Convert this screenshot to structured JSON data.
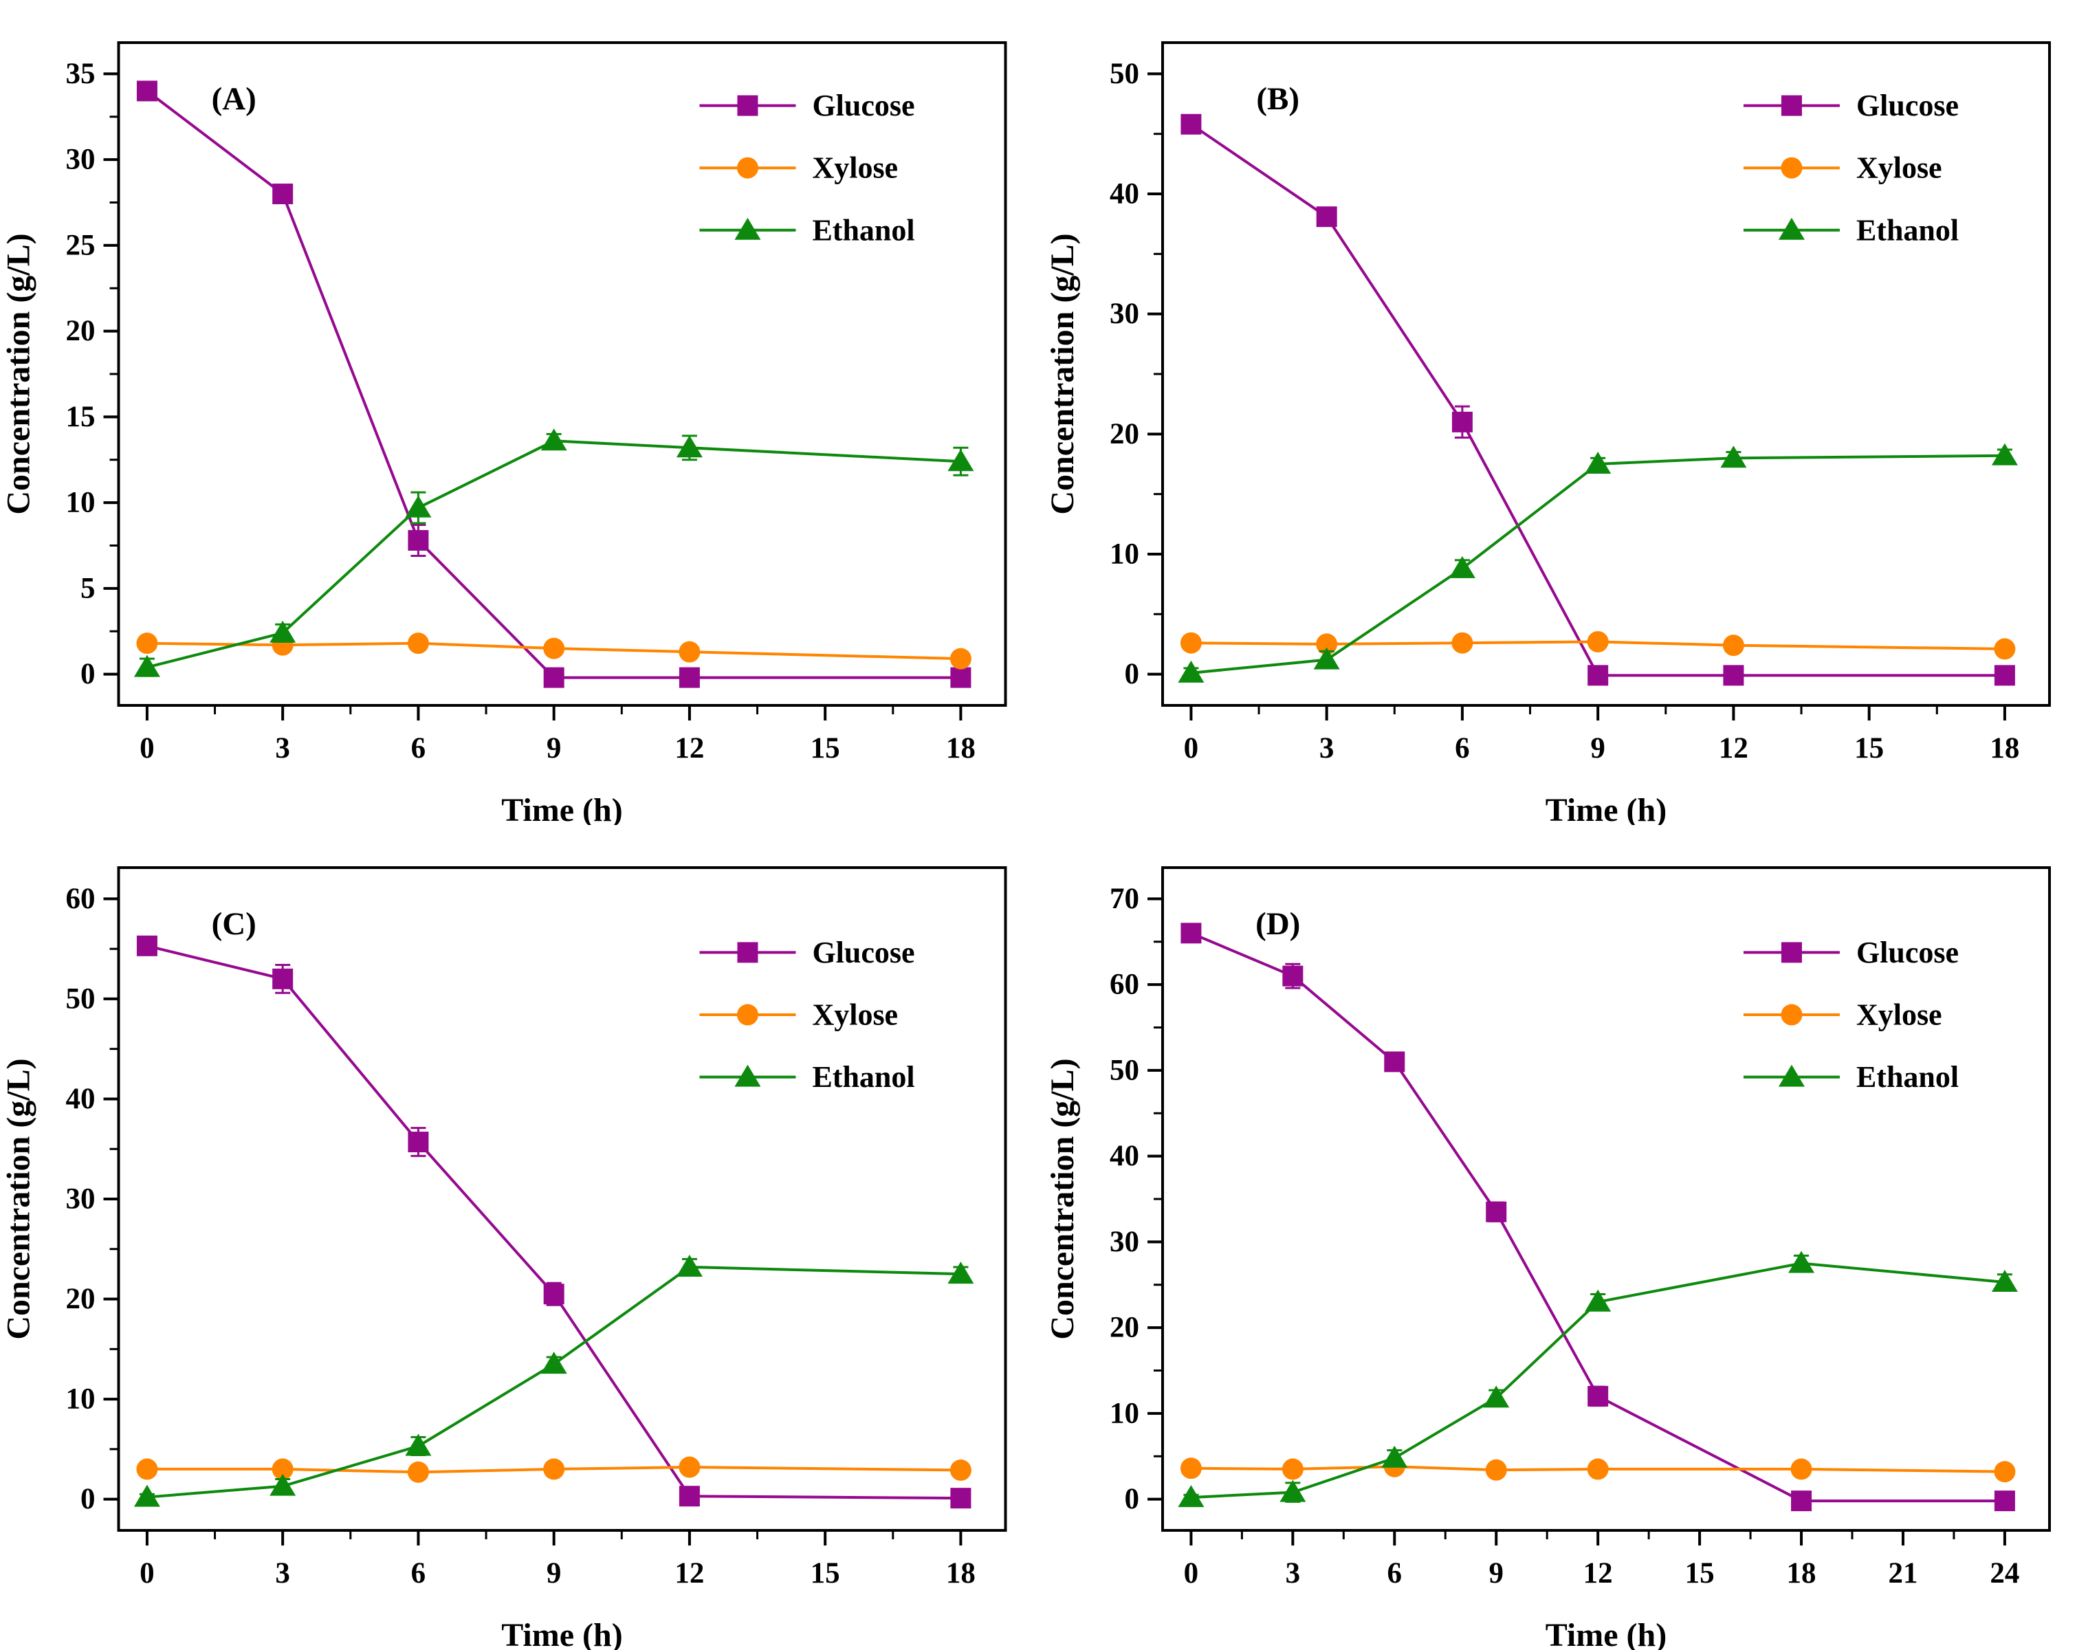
{
  "figure": {
    "description": "Four-panel fermentation time-course figure",
    "panel_labels": [
      "(A)",
      "(B)",
      "(C)",
      "(D)"
    ]
  },
  "colors": {
    "glucose": "#96098F",
    "xylose": "#FF8500",
    "ethanol": "#0D8A0D",
    "axis": "#000000",
    "background": "#FFFFFF"
  },
  "chart_data": [
    {
      "type": "line",
      "panel_label": "(A)",
      "xlabel": "Time (h)",
      "ylabel": "Concentration (g/L)",
      "grid": false,
      "legend_position": "inside-upper-right",
      "legend_offset": 0.095,
      "x": [
        0,
        3,
        6,
        9,
        12,
        18
      ],
      "xticks": [
        0,
        3,
        6,
        9,
        12,
        15,
        18
      ],
      "yticks": [
        0,
        5,
        10,
        15,
        20,
        25,
        30,
        35
      ],
      "ylim": [
        0,
        35
      ],
      "ytick_step": 5,
      "series": [
        {
          "name": "Glucose",
          "color": "#96098F",
          "marker": "square",
          "values": [
            34.0,
            28.0,
            7.8,
            -0.2,
            -0.2,
            -0.2
          ],
          "errors": [
            0.4,
            0.5,
            0.9,
            0,
            0,
            0
          ]
        },
        {
          "name": "Xylose",
          "color": "#FF8500",
          "marker": "circle",
          "values": [
            1.8,
            1.7,
            1.8,
            1.5,
            1.3,
            0.9
          ],
          "errors": [
            0.2,
            0.3,
            0.2,
            0.2,
            0.2,
            0.2
          ]
        },
        {
          "name": "Ethanol",
          "color": "#0D8A0D",
          "marker": "triangle",
          "values": [
            0.4,
            2.4,
            9.7,
            13.6,
            13.2,
            12.4
          ],
          "errors": [
            0.5,
            0.5,
            0.9,
            0.4,
            0.7,
            0.8
          ]
        }
      ]
    },
    {
      "type": "line",
      "panel_label": "(B)",
      "xlabel": "Time (h)",
      "ylabel": "Concentration (g/L)",
      "grid": false,
      "legend_position": "inside-upper-right",
      "legend_offset": 0.095,
      "x": [
        0,
        3,
        6,
        9,
        12,
        18
      ],
      "xticks": [
        0,
        3,
        6,
        9,
        12,
        15,
        18
      ],
      "yticks": [
        0,
        10,
        20,
        30,
        40,
        50
      ],
      "ylim": [
        0,
        50
      ],
      "ytick_step": 10,
      "series": [
        {
          "name": "Glucose",
          "color": "#96098F",
          "marker": "square",
          "values": [
            45.8,
            38.1,
            21.0,
            -0.1,
            -0.1,
            -0.1
          ],
          "errors": [
            0.5,
            0.6,
            1.3,
            0,
            0,
            0
          ]
        },
        {
          "name": "Xylose",
          "color": "#FF8500",
          "marker": "circle",
          "values": [
            2.6,
            2.5,
            2.6,
            2.7,
            2.4,
            2.1
          ],
          "errors": [
            0.3,
            0.3,
            0.2,
            0.3,
            0.2,
            0.2
          ]
        },
        {
          "name": "Ethanol",
          "color": "#0D8A0D",
          "marker": "triangle",
          "values": [
            0.1,
            1.2,
            8.8,
            17.5,
            18.0,
            18.2
          ],
          "errors": [
            0.4,
            0.7,
            0.7,
            0.5,
            0.5,
            0.5
          ]
        }
      ]
    },
    {
      "type": "line",
      "panel_label": "(C)",
      "xlabel": "Time (h)",
      "ylabel": "Concentration (g/L)",
      "grid": false,
      "legend_position": "inside-upper-right",
      "legend_offset": 0.128,
      "x": [
        0,
        3,
        6,
        9,
        12,
        18
      ],
      "xticks": [
        0,
        3,
        6,
        9,
        12,
        15,
        18
      ],
      "yticks": [
        0,
        10,
        20,
        30,
        40,
        50,
        60
      ],
      "ylim": [
        0,
        60
      ],
      "ytick_step": 10,
      "series": [
        {
          "name": "Glucose",
          "color": "#96098F",
          "marker": "square",
          "values": [
            55.3,
            52.0,
            35.7,
            20.5,
            0.3,
            0.1
          ],
          "errors": [
            0.6,
            1.4,
            1.4,
            1.1,
            0.2,
            0
          ]
        },
        {
          "name": "Xylose",
          "color": "#FF8500",
          "marker": "circle",
          "values": [
            3.0,
            3.0,
            2.7,
            3.0,
            3.2,
            2.9
          ],
          "errors": [
            0.3,
            0.3,
            0.3,
            0.3,
            0.3,
            0.2
          ]
        },
        {
          "name": "Ethanol",
          "color": "#0D8A0D",
          "marker": "triangle",
          "values": [
            0.2,
            1.3,
            5.3,
            13.5,
            23.2,
            22.5
          ],
          "errors": [
            0.3,
            0.7,
            0.9,
            0.7,
            0.8,
            0.7
          ]
        }
      ]
    },
    {
      "type": "line",
      "panel_label": "(D)",
      "xlabel": "Time (h)",
      "ylabel": "Concentration (g/L)",
      "grid": false,
      "legend_position": "inside-upper-right",
      "legend_offset": 0.128,
      "x": [
        0,
        3,
        6,
        9,
        12,
        18,
        24
      ],
      "xticks": [
        0,
        3,
        6,
        9,
        12,
        15,
        18,
        21,
        24
      ],
      "yticks": [
        0,
        10,
        20,
        30,
        40,
        50,
        60,
        70
      ],
      "ylim": [
        0,
        70
      ],
      "ytick_step": 10,
      "series": [
        {
          "name": "Glucose",
          "color": "#96098F",
          "marker": "square",
          "values": [
            66.0,
            61.0,
            51.0,
            33.5,
            12.0,
            -0.2,
            -0.2
          ],
          "errors": [
            0.5,
            1.4,
            0.6,
            1.1,
            1.1,
            0,
            0
          ]
        },
        {
          "name": "Xylose",
          "color": "#FF8500",
          "marker": "circle",
          "values": [
            3.6,
            3.5,
            3.8,
            3.4,
            3.5,
            3.5,
            3.2
          ],
          "errors": [
            0.4,
            0.4,
            0.5,
            0.3,
            0.4,
            0.3,
            0.3
          ]
        },
        {
          "name": "Ethanol",
          "color": "#0D8A0D",
          "marker": "triangle",
          "values": [
            0.2,
            0.8,
            4.8,
            11.8,
            23.0,
            27.5,
            25.3
          ],
          "errors": [
            0.3,
            1.1,
            0.9,
            0.9,
            0.9,
            0.9,
            0.9
          ]
        }
      ]
    }
  ]
}
